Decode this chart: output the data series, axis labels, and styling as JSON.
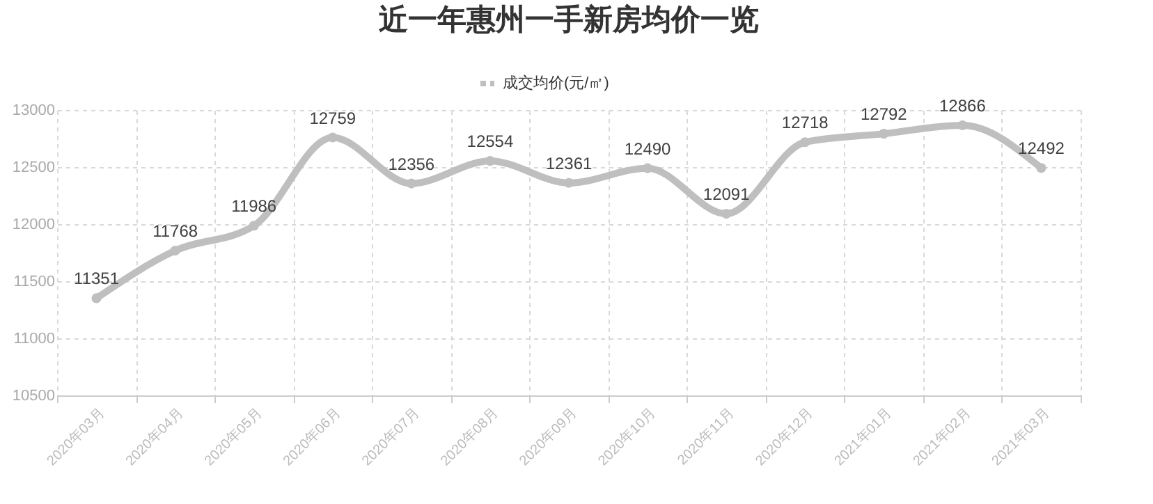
{
  "chart_data": {
    "type": "line",
    "title": "近一年惠州一手新房均价一览",
    "categories": [
      "2020年03月",
      "2020年04月",
      "2020年05月",
      "2020年06月",
      "2020年07月",
      "2020年08月",
      "2020年09月",
      "2020年10月",
      "2020年11月",
      "2020年12月",
      "2021年01月",
      "2021年02月",
      "2021年03月"
    ],
    "series": [
      {
        "name": "成交均价(元/㎡)",
        "color": "#bfbfbf",
        "values": [
          11351,
          11768,
          11986,
          12759,
          12356,
          12554,
          12361,
          12490,
          12091,
          12718,
          12792,
          12866,
          12492
        ]
      }
    ],
    "ylim": [
      10500,
      13000
    ],
    "yticks": [
      10500,
      11000,
      11500,
      12000,
      12500,
      13000
    ],
    "grid": true,
    "legend": "top",
    "marker": "circle",
    "line_style": "solid",
    "data_labels": true
  }
}
